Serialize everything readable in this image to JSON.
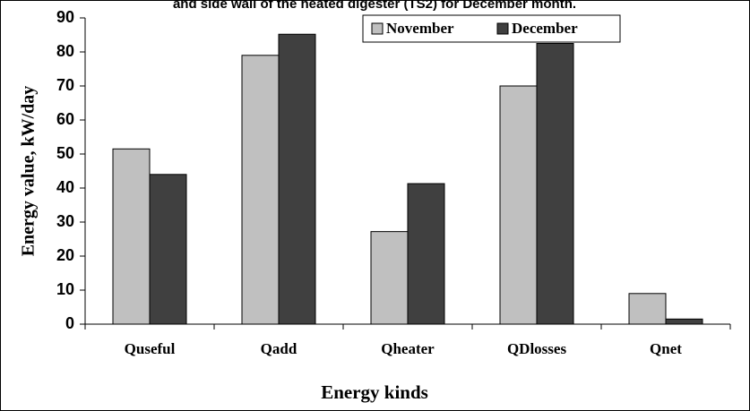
{
  "chart_data": {
    "type": "bar",
    "title": "and side wall of the heated digester (TS2) for December month.",
    "x_label": "Energy kinds",
    "y_label": "Energy value, kW/day",
    "categories": [
      "Quseful",
      "Qadd",
      "Qheater",
      "QDlosses",
      "Qnet"
    ],
    "series": [
      {
        "name": "November",
        "color": "#c0c0c0",
        "values": [
          51.5,
          79,
          27.2,
          70,
          9
        ]
      },
      {
        "name": "December",
        "color": "#404040",
        "values": [
          44,
          85.2,
          41.3,
          82.5,
          1.5
        ]
      }
    ],
    "ylim": [
      0,
      90
    ],
    "yticks": [
      0,
      10,
      20,
      30,
      40,
      50,
      60,
      70,
      80,
      90
    ],
    "legend": "top-right"
  }
}
